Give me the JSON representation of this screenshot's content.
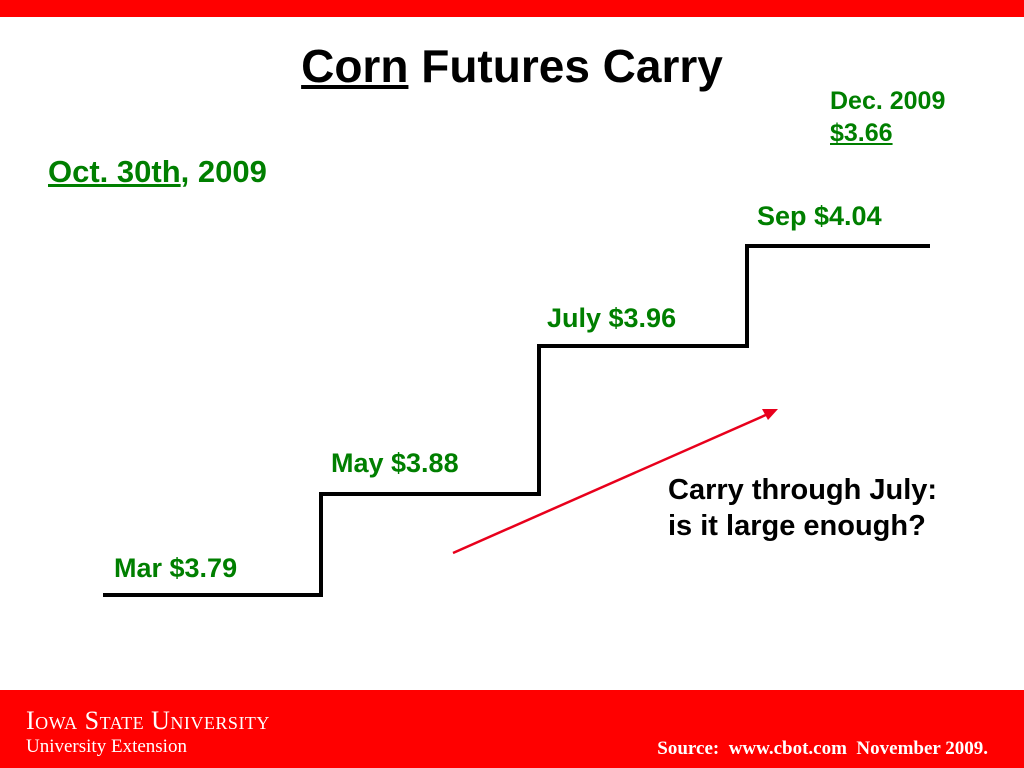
{
  "colors": {
    "brand_red": "#ff0000",
    "label_green": "#007f00",
    "line_black": "#000000",
    "arrow_red": "#e8001c"
  },
  "slide": {
    "title_underlined": "Corn",
    "title_rest": " Futures Carry",
    "date_underlined": "Oct. 30th",
    "date_rest": ", 2009",
    "dec_line1": "Dec. 2009",
    "dec_line2": "$3.66",
    "carry_note": "Carry through July: is it large enough?"
  },
  "steps": [
    {
      "label": "Mar $3.79",
      "price": 3.79
    },
    {
      "label": "May $3.88",
      "price": 3.88
    },
    {
      "label": "July $3.96",
      "price": 3.96
    },
    {
      "label": "Sep $4.04",
      "price": 4.04
    }
  ],
  "footer": {
    "logo_line1": "Iowa State University",
    "logo_line2": "University Extension",
    "source": "Source:  www.cbot.com  November 2009."
  }
}
